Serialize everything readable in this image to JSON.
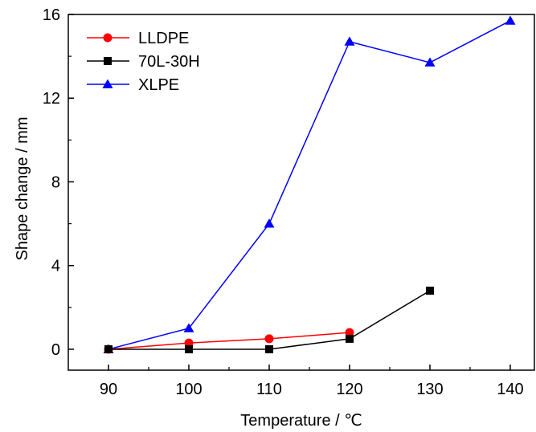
{
  "chart_data": {
    "type": "line",
    "title": "",
    "xlabel": "Temperature / ℃",
    "ylabel": "Shape change / mm",
    "xlim": [
      85,
      143
    ],
    "ylim": [
      -1,
      16
    ],
    "xticks": [
      90,
      100,
      110,
      120,
      130,
      140
    ],
    "yticks": [
      0,
      4,
      8,
      12,
      16
    ],
    "grid": false,
    "legend_position": "top-left",
    "series": [
      {
        "name": "LLDPE",
        "color": "#ff0000",
        "marker": "circle",
        "x": [
          90,
          100,
          110,
          120
        ],
        "values": [
          0,
          0.3,
          0.5,
          0.8
        ]
      },
      {
        "name": "70L-30H",
        "color": "#000000",
        "marker": "square",
        "x": [
          90,
          100,
          110,
          120,
          130
        ],
        "values": [
          0,
          0,
          0,
          0.5,
          2.8
        ]
      },
      {
        "name": "XLPE",
        "color": "#0000ff",
        "marker": "triangle",
        "x": [
          90,
          100,
          110,
          120,
          130,
          140
        ],
        "values": [
          0,
          1,
          6,
          14.7,
          13.7,
          15.7
        ]
      }
    ]
  }
}
